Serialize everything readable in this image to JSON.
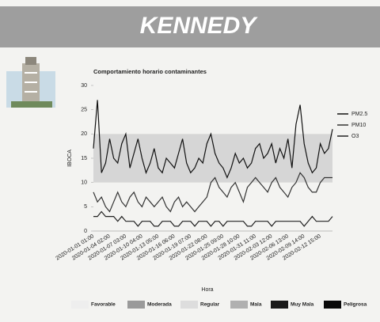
{
  "header": {
    "title": "KENNEDY"
  },
  "chart_data": {
    "type": "line",
    "title": "Comportamiento horario contaminantes",
    "x_label": "Hora",
    "y_label": "IBOCA",
    "categories": [
      "2020-01-01 01:00",
      null,
      null,
      null,
      "2020-01-04 02:00",
      null,
      null,
      null,
      "2020-01-07 03:00",
      null,
      null,
      null,
      "2020-01-10 04:00",
      null,
      null,
      null,
      "2020-01-13 05:00",
      null,
      null,
      null,
      "2020-01-16 06:00",
      null,
      null,
      null,
      "2020-01-19 07:00",
      null,
      null,
      null,
      "2020-01-22 08:00",
      null,
      null,
      null,
      "2020-01-25 09:00",
      null,
      null,
      null,
      "2020-01-28 10:00",
      null,
      null,
      null,
      "2020-01-31 11:00",
      null,
      null,
      null,
      "2020-02-03 12:00",
      null,
      null,
      null,
      "2020-02-06 13:00",
      null,
      null,
      null,
      "2020-02-09 14:00",
      null,
      null,
      null,
      "2020-02-12 15:00",
      null,
      null,
      null
    ],
    "series": [
      {
        "name": "PM2.5",
        "color": "#111111",
        "values": [
          17,
          27,
          12,
          14,
          19,
          15,
          14,
          18,
          20,
          13,
          16,
          19,
          15,
          12,
          14,
          17,
          13,
          12,
          15,
          14,
          13,
          16,
          19,
          14,
          12,
          13,
          15,
          14,
          18,
          20,
          16,
          14,
          13,
          11,
          13,
          16,
          14,
          15,
          13,
          14,
          17,
          18,
          15,
          16,
          18,
          14,
          17,
          15,
          19,
          13,
          22,
          26,
          18,
          14,
          12,
          13,
          18,
          16,
          17,
          21
        ]
      },
      {
        "name": "PM10",
        "color": "#333333",
        "values": [
          8,
          6,
          7,
          5,
          4,
          6,
          8,
          6,
          5,
          7,
          8,
          6,
          5,
          7,
          6,
          5,
          6,
          7,
          5,
          4,
          6,
          7,
          5,
          6,
          5,
          4,
          5,
          6,
          7,
          10,
          11,
          9,
          8,
          7,
          9,
          10,
          8,
          6,
          9,
          10,
          11,
          10,
          9,
          8,
          10,
          11,
          9,
          8,
          7,
          9,
          10,
          12,
          11,
          9,
          8,
          8,
          10,
          11,
          11,
          11
        ]
      },
      {
        "name": "O3",
        "color": "#222222",
        "values": [
          3,
          3,
          4,
          3,
          3,
          3,
          2,
          3,
          2,
          2,
          2,
          1,
          2,
          2,
          2,
          1,
          1,
          2,
          2,
          2,
          1,
          1,
          2,
          2,
          2,
          1,
          2,
          2,
          2,
          1,
          2,
          2,
          1,
          2,
          2,
          2,
          2,
          2,
          1,
          1,
          2,
          2,
          2,
          2,
          1,
          2,
          2,
          2,
          2,
          2,
          2,
          2,
          1,
          2,
          3,
          2,
          2,
          2,
          2,
          3
        ]
      }
    ],
    "ylim": [
      0,
      30
    ],
    "yticks": [
      0,
      5,
      10,
      15,
      20,
      25,
      30
    ],
    "band": {
      "from": 10,
      "to": 20,
      "color": "#d6d6d6"
    },
    "aqi_legend": [
      {
        "label": "Favorable",
        "color": "#eeeeee"
      },
      {
        "label": "Moderada",
        "color": "#9a9a9a"
      },
      {
        "label": "Regular",
        "color": "#dddddd"
      },
      {
        "label": "Mala",
        "color": "#b0b0b0"
      },
      {
        "label": "Muy Mala",
        "color": "#1a1a1a"
      },
      {
        "label": "Peligrosa",
        "color": "#0a0a0a"
      }
    ]
  }
}
